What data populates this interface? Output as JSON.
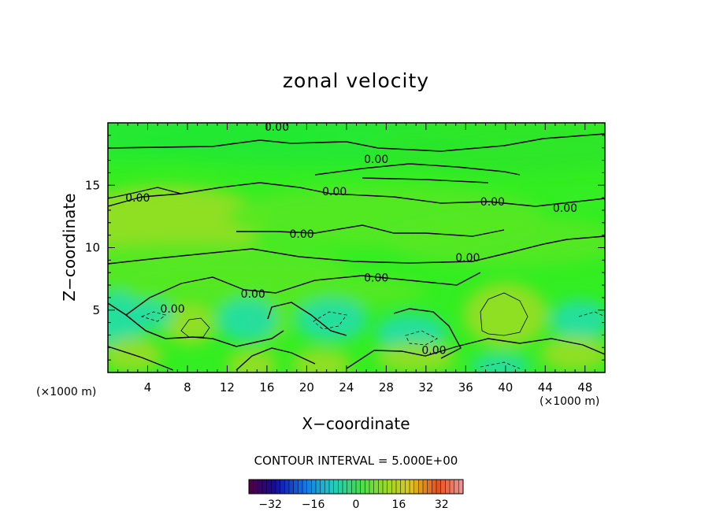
{
  "chart_data": {
    "type": "heatmap",
    "title": "zonal velocity",
    "xlabel": "X−coordinate",
    "ylabel": "Z−coordinate",
    "x_unit_label": "(×1000 m)",
    "x_ticks": [
      4,
      8,
      12,
      16,
      20,
      24,
      28,
      32,
      36,
      40,
      44,
      48
    ],
    "y_ticks": [
      5,
      10,
      15
    ],
    "xlim": [
      0,
      50
    ],
    "ylim": [
      0,
      20
    ],
    "contour_interval_label": "CONTOUR INTERVAL = 5.000E+00",
    "contour_labels": [
      {
        "text": "0.00",
        "x": 17,
        "y": 19.7
      },
      {
        "text": "0.00",
        "x": 27,
        "y": 17.1
      },
      {
        "text": "0.00",
        "x": 22.8,
        "y": 14.5
      },
      {
        "text": "0.00",
        "x": 3,
        "y": 14
      },
      {
        "text": "0.00",
        "x": 38.7,
        "y": 13.7
      },
      {
        "text": "0.00",
        "x": 46,
        "y": 13.2
      },
      {
        "text": "0.00",
        "x": 19.5,
        "y": 11.1
      },
      {
        "text": "0.00",
        "x": 36.2,
        "y": 9.2
      },
      {
        "text": "0.00",
        "x": 27,
        "y": 7.6
      },
      {
        "text": "0.00",
        "x": 14.6,
        "y": 6.3
      },
      {
        "text": "0.00",
        "x": 6.5,
        "y": 5.1
      },
      {
        "text": "0.00",
        "x": 32.8,
        "y": 1.8
      }
    ],
    "colorbar": {
      "range": [
        -40,
        40
      ],
      "tick_values": [
        -32,
        -16,
        0,
        16,
        32
      ],
      "tick_labels": [
        "−32",
        "−16",
        "0",
        "16",
        "32"
      ]
    },
    "colors": {
      "background_field": "#33ee22",
      "positive_patch": "#99dd22",
      "negative_patch": "#22ddaa",
      "contour_line": "#000000"
    }
  }
}
